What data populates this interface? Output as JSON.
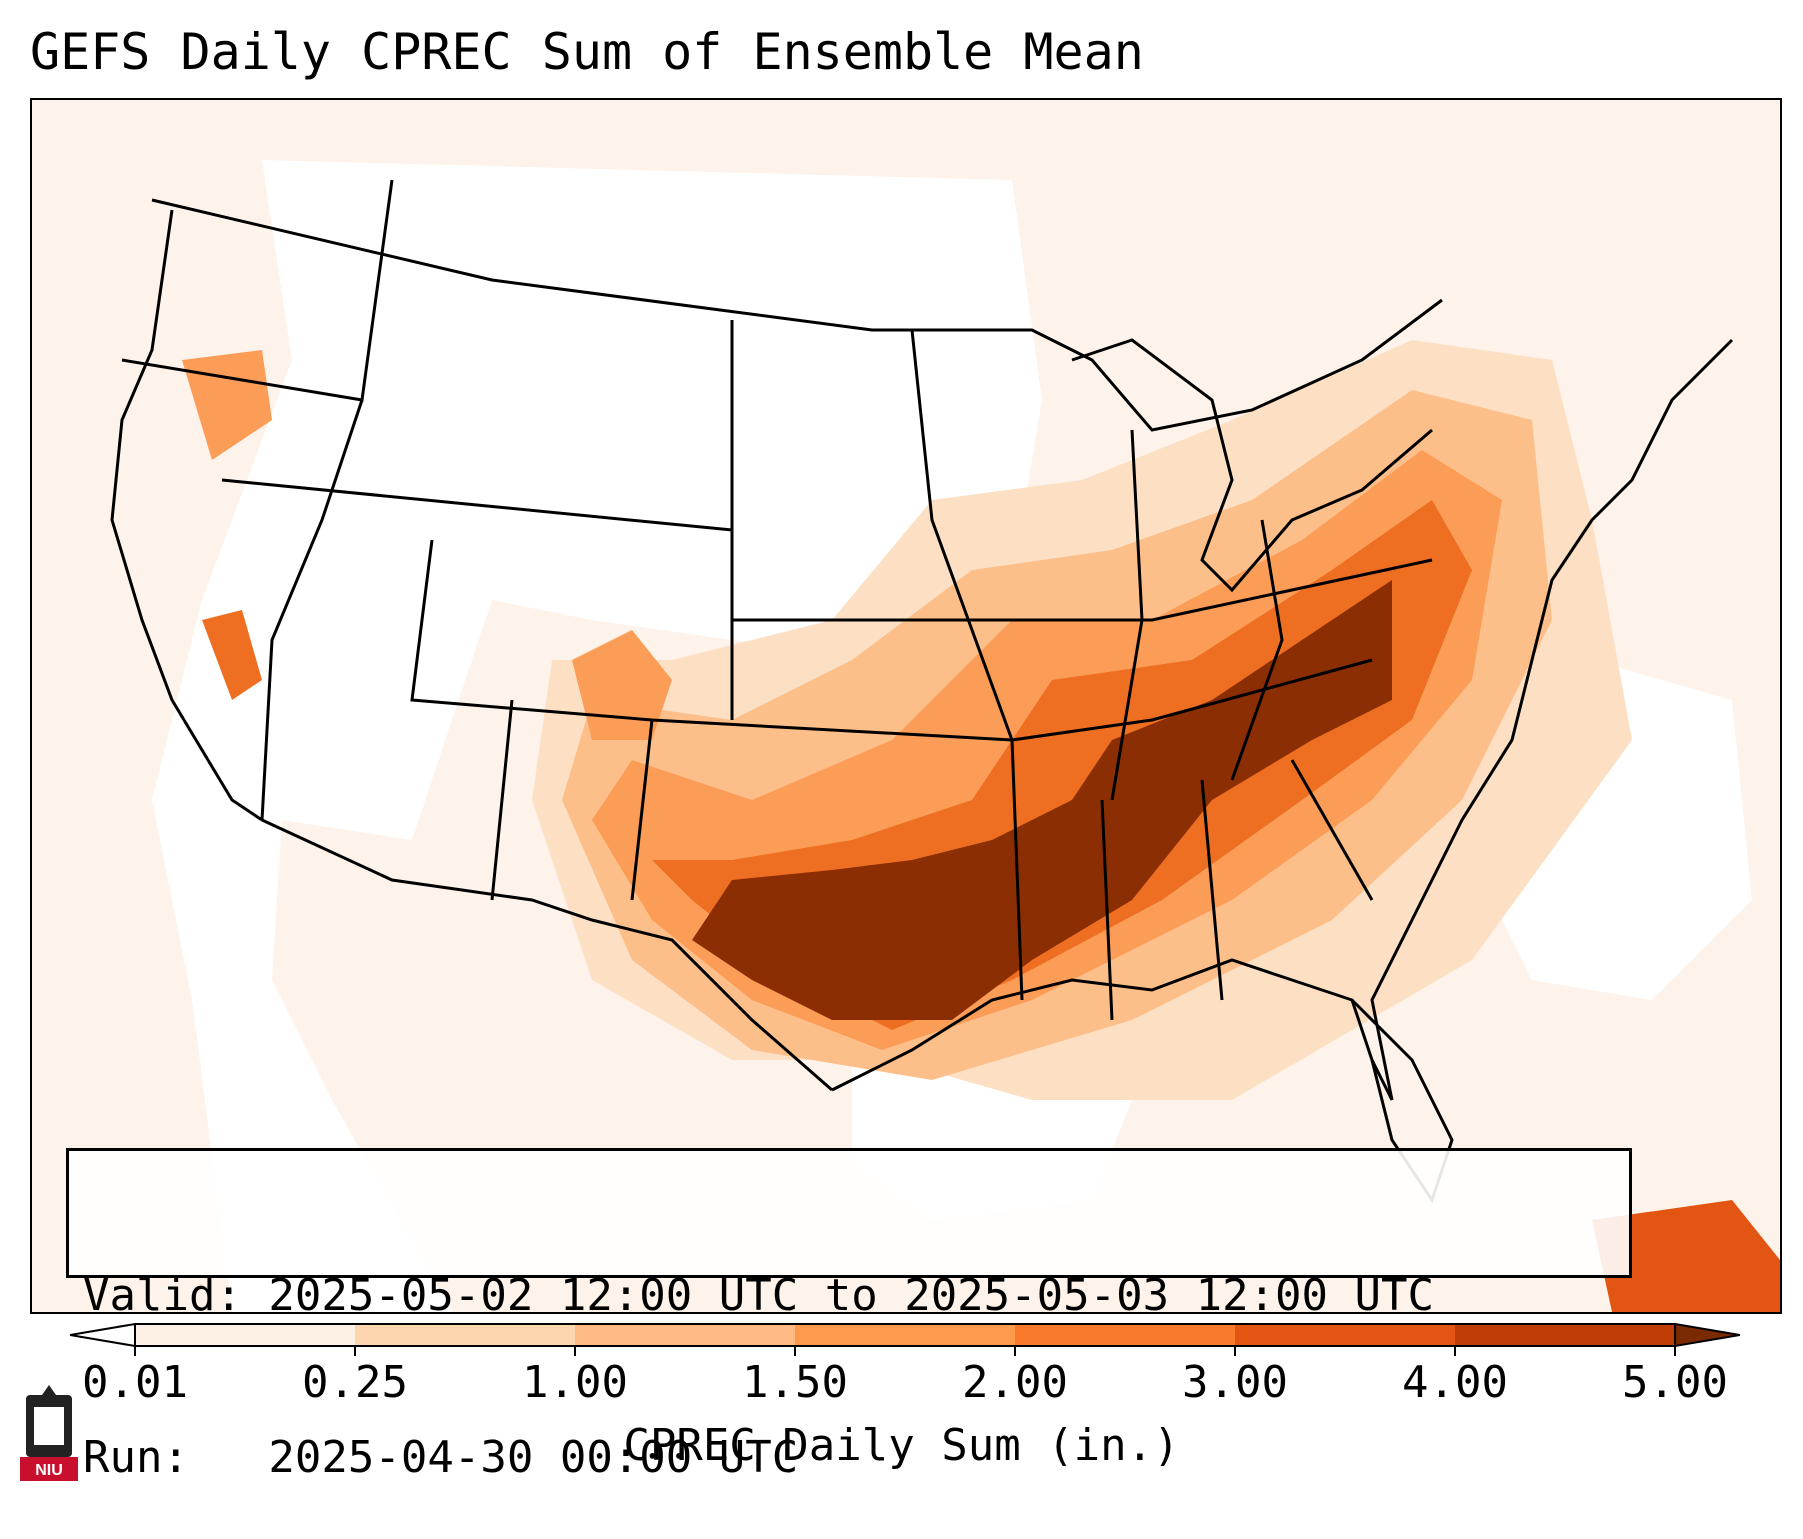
{
  "title": "GEFS Daily CPREC Sum of Ensemble Mean",
  "info": {
    "valid_line": "Valid: 2025-05-02 12:00 UTC to 2025-05-03 12:00 UTC",
    "run_line": "Run:   2025-04-30 00:00 UTC"
  },
  "colorbar": {
    "label": "CPREC Daily Sum (in.)",
    "ticks": [
      "0.01",
      "0.25",
      "1.00",
      "1.50",
      "2.00",
      "3.00",
      "4.00",
      "5.00"
    ],
    "colors": [
      "#fdf0e4",
      "#fdd6b0",
      "#fdba82",
      "#fd9a4e",
      "#f87a2a",
      "#e25512",
      "#c03d05",
      "#8b2e04"
    ],
    "under_color": "#ffffff",
    "over_color": "#7a2b03",
    "extend": "both"
  },
  "map": {
    "region": "Continental United States",
    "projection": "Lambert Conformal",
    "heavy_precip_region": "Southern Plains to Mid-Atlantic"
  },
  "logo": {
    "text": "NIU",
    "color": "#c8102e"
  }
}
